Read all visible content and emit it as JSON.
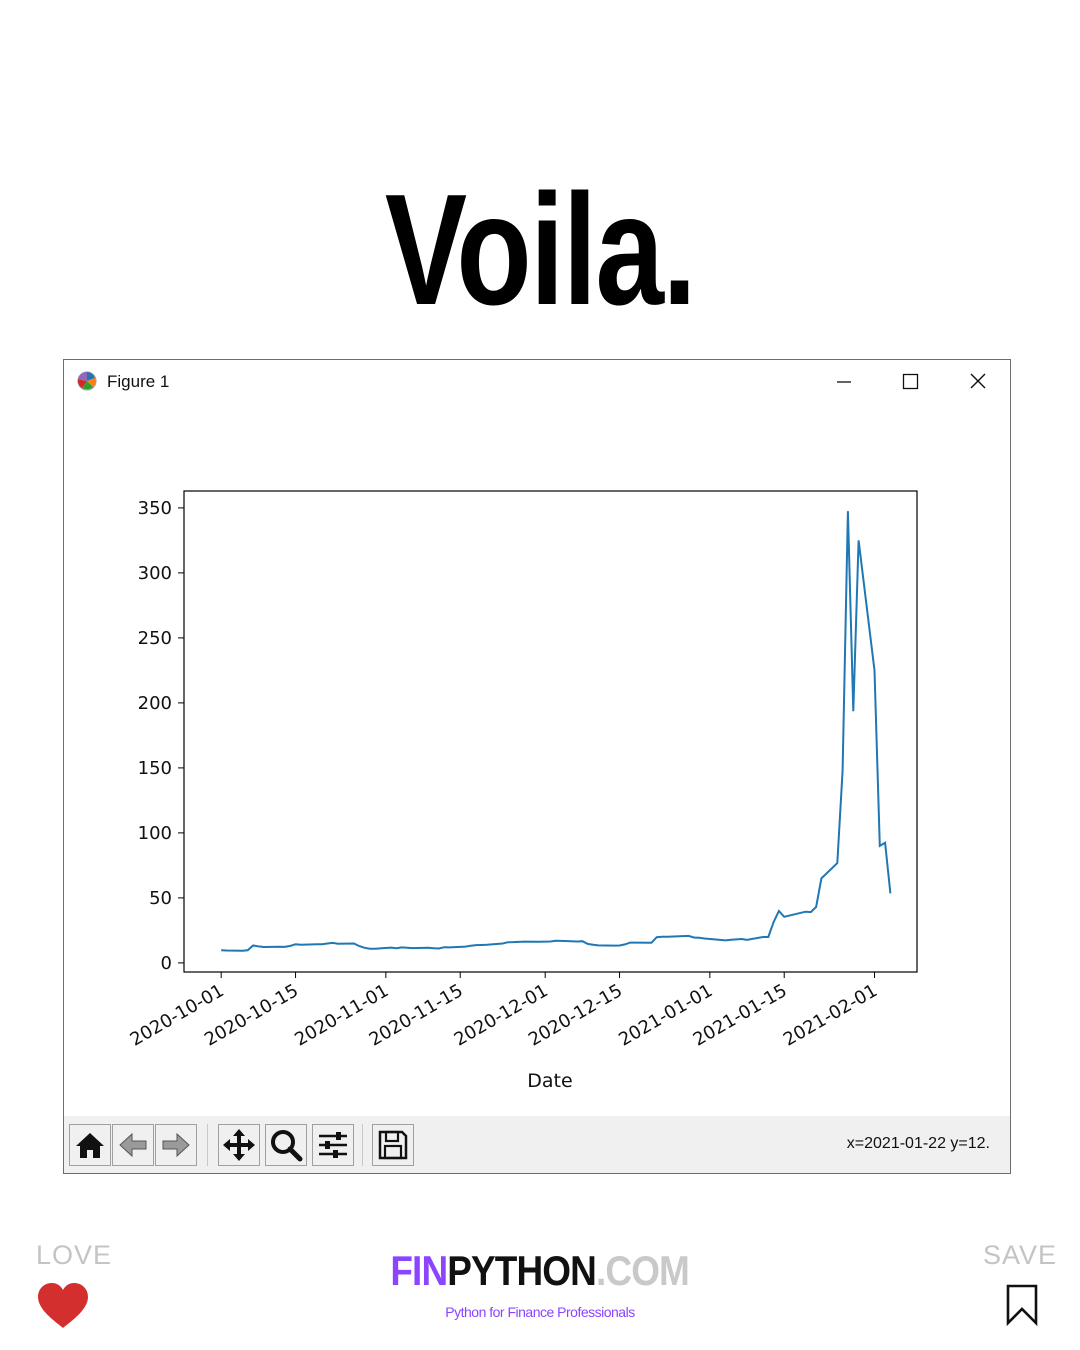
{
  "headline": "Voila.",
  "window": {
    "title": "Figure 1",
    "icon": "matplotlib-logo-icon",
    "controls": [
      "minimize-icon",
      "maximize-icon",
      "close-icon"
    ]
  },
  "toolbar": {
    "buttons": [
      "home-icon",
      "back-arrow-icon",
      "forward-arrow-icon",
      "pan-move-icon",
      "zoom-magnifier-icon",
      "subplots-configure-icon",
      "save-floppy-icon"
    ],
    "coords": "x=2021-01-22 y=12."
  },
  "chart_data": {
    "type": "line",
    "xlabel": "Date",
    "ylabel": "",
    "title": "",
    "line_color": "#1f77b4",
    "x_axis_type": "date",
    "xlim": [
      "2020-09-24",
      "2021-02-09"
    ],
    "ylim": [
      -7,
      363
    ],
    "yticks": [
      0,
      50,
      100,
      150,
      200,
      250,
      300,
      350
    ],
    "xticks": [
      "2020-10-01",
      "2020-10-15",
      "2020-11-01",
      "2020-11-15",
      "2020-12-01",
      "2020-12-15",
      "2021-01-01",
      "2021-01-15",
      "2021-02-01"
    ],
    "xtick_rotation": 30,
    "grid": false,
    "series": [
      {
        "x": [
          "2020-10-01",
          "2020-10-02",
          "2020-10-05",
          "2020-10-06",
          "2020-10-07",
          "2020-10-08",
          "2020-10-09",
          "2020-10-12",
          "2020-10-13",
          "2020-10-14",
          "2020-10-15",
          "2020-10-16",
          "2020-10-19",
          "2020-10-20",
          "2020-10-21",
          "2020-10-22",
          "2020-10-23",
          "2020-10-26",
          "2020-10-27",
          "2020-10-28",
          "2020-10-29",
          "2020-10-30",
          "2020-11-02",
          "2020-11-03",
          "2020-11-04",
          "2020-11-05",
          "2020-11-06",
          "2020-11-09",
          "2020-11-10",
          "2020-11-11",
          "2020-11-12",
          "2020-11-13",
          "2020-11-16",
          "2020-11-17",
          "2020-11-18",
          "2020-11-19",
          "2020-11-20",
          "2020-11-23",
          "2020-11-24",
          "2020-11-25",
          "2020-11-27",
          "2020-11-30",
          "2020-12-01",
          "2020-12-02",
          "2020-12-03",
          "2020-12-04",
          "2020-12-07",
          "2020-12-08",
          "2020-12-09",
          "2020-12-10",
          "2020-12-11",
          "2020-12-14",
          "2020-12-15",
          "2020-12-16",
          "2020-12-17",
          "2020-12-18",
          "2020-12-21",
          "2020-12-22",
          "2020-12-23",
          "2020-12-24",
          "2020-12-28",
          "2020-12-29",
          "2020-12-30",
          "2020-12-31",
          "2021-01-04",
          "2021-01-05",
          "2021-01-06",
          "2021-01-07",
          "2021-01-08",
          "2021-01-11",
          "2021-01-12",
          "2021-01-13",
          "2021-01-14",
          "2021-01-15",
          "2021-01-19",
          "2021-01-20",
          "2021-01-21",
          "2021-01-22",
          "2021-01-25",
          "2021-01-26",
          "2021-01-27",
          "2021-01-28",
          "2021-01-29",
          "2021-02-01",
          "2021-02-02",
          "2021-02-03",
          "2021-02-04"
        ],
        "y": [
          9.8,
          9.5,
          9.4,
          9.7,
          13.4,
          12.7,
          12.2,
          12.4,
          12.3,
          13.1,
          14.3,
          13.9,
          14.4,
          14.3,
          14.9,
          15.4,
          14.8,
          14.9,
          12.9,
          11.6,
          10.9,
          10.9,
          11.8,
          11.3,
          11.9,
          11.6,
          11.4,
          11.7,
          11.3,
          11.1,
          12.1,
          11.9,
          12.5,
          13.2,
          13.7,
          13.8,
          13.9,
          14.9,
          15.9,
          16.0,
          16.4,
          16.3,
          16.4,
          16.5,
          17.1,
          16.9,
          16.5,
          16.7,
          14.6,
          14.0,
          13.5,
          13.3,
          13.4,
          14.2,
          15.6,
          15.6,
          15.5,
          19.8,
          20.1,
          20.1,
          20.8,
          19.5,
          19.3,
          18.8,
          17.3,
          17.8,
          18.1,
          18.4,
          17.7,
          19.9,
          19.9,
          31.4,
          39.9,
          35.5,
          39.4,
          39.1,
          43.0,
          65.0,
          76.8,
          147.9,
          347.5,
          193.6,
          325.0,
          225.0,
          90.0,
          92.4,
          53.5
        ]
      }
    ]
  },
  "footer": {
    "love_label": "LOVE",
    "save_label": "SAVE",
    "brand_fin": "FIN",
    "brand_python": "PYTHON",
    "brand_com": ".COM",
    "tagline": "Python for Finance Professionals",
    "brand_color": "#8b45ff",
    "heart_color": "#d32f2f"
  }
}
